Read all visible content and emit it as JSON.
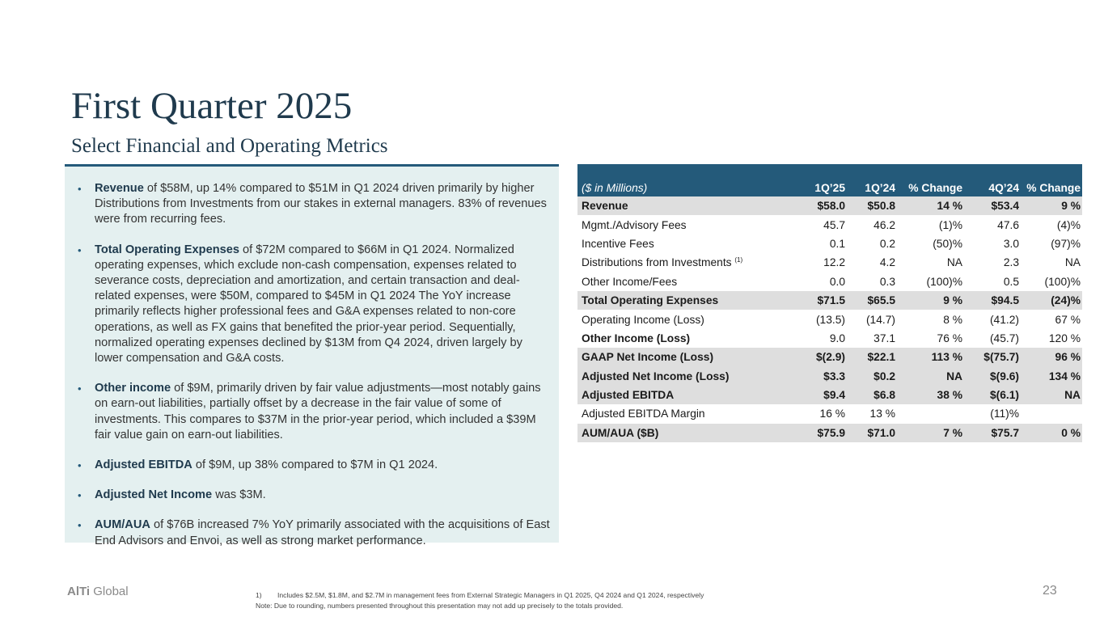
{
  "title": "First Quarter 2025",
  "subtitle": "Select Financial and Operating Metrics",
  "bullets": [
    {
      "bold": "Revenue",
      "text": " of $58M, up 14% compared to $51M in Q1 2024 driven primarily by higher Distributions from Investments from our stakes in external managers. 83% of revenues were from recurring fees."
    },
    {
      "bold": "Total Operating Expenses",
      "text": " of $72M compared to $66M in Q1 2024. Normalized operating expenses, which exclude non-cash compensation, expenses related to severance costs, depreciation and amortization, and certain transaction and deal-related expenses, were $50M, compared to $45M in Q1 2024 The YoY increase primarily reflects higher professional fees and G&A expenses related to non-core operations, as well as FX gains that benefited the prior-year period. Sequentially, normalized operating expenses declined by $13M from Q4 2024, driven largely by lower compensation and G&A costs."
    },
    {
      "bold": "Other income",
      "text": " of $9M, primarily driven by fair value adjustments—most notably gains on earn-out liabilities, partially offset by a decrease in the fair value of some of investments. This compares to $37M in the prior-year period, which included a $39M fair value gain on earn-out liabilities."
    },
    {
      "bold": "Adjusted EBITDA",
      "text": " of $9M, up 38% compared to $7M in Q1 2024."
    },
    {
      "bold": "Adjusted Net Income",
      "text": "  was $3M."
    },
    {
      "bold": "AUM/AUA",
      "text": " of $76B increased 7% YoY primarily associated with the acquisitions of East End Advisors and Envoi, as well as strong market performance."
    }
  ],
  "table": {
    "headers": [
      "($ in Millions)",
      "1Q’25",
      "1Q’24",
      "% Change",
      "4Q’24",
      "% Change"
    ],
    "rows": [
      {
        "label": "Revenue",
        "sup": "",
        "values": [
          "$58.0",
          "$50.8",
          "14 %",
          "$53.4",
          "9 %"
        ],
        "highlight": true
      },
      {
        "label": "Mgmt./Advisory Fees",
        "sup": "",
        "values": [
          "45.7",
          "46.2",
          "(1)%",
          "47.6",
          "(4)%"
        ],
        "highlight": false
      },
      {
        "label": "Incentive Fees",
        "sup": "",
        "values": [
          "0.1",
          "0.2",
          "(50)%",
          "3.0",
          "(97)%"
        ],
        "highlight": false
      },
      {
        "label": "Distributions from Investments ",
        "sup": "(1)",
        "values": [
          "12.2",
          "4.2",
          "NA",
          "2.3",
          "NA"
        ],
        "highlight": false
      },
      {
        "label": "Other Income/Fees",
        "sup": "",
        "values": [
          "0.0",
          "0.3",
          "(100)%",
          "0.5",
          "(100)%"
        ],
        "highlight": false
      },
      {
        "label": "Total Operating Expenses",
        "sup": "",
        "values": [
          "$71.5",
          "$65.5",
          "9 %",
          "$94.5",
          "(24)%"
        ],
        "highlight": true
      },
      {
        "label": "Operating Income (Loss)",
        "sup": "",
        "values": [
          "(13.5)",
          "(14.7)",
          "8 %",
          "(41.2)",
          "67 %"
        ],
        "highlight": false
      },
      {
        "label": "Other Income (Loss)",
        "sup": "",
        "values": [
          "9.0",
          "37.1",
          "76 %",
          "(45.7)",
          "120 %"
        ],
        "highlight": false,
        "bold_label": true
      },
      {
        "label": "GAAP Net Income (Loss)",
        "sup": "",
        "values": [
          "$(2.9)",
          "$22.1",
          "113 %",
          "$(75.7)",
          "96 %"
        ],
        "highlight": true
      },
      {
        "label": "Adjusted Net Income (Loss)",
        "sup": "",
        "values": [
          "$3.3",
          "$0.2",
          "NA",
          "$(9.6)",
          "134 %"
        ],
        "highlight": true
      },
      {
        "label": "Adjusted EBITDA",
        "sup": "",
        "values": [
          "$9.4",
          "$6.8",
          "38 %",
          "$(6.1)",
          "NA"
        ],
        "highlight": true
      },
      {
        "label": "Adjusted EBITDA Margin",
        "sup": "",
        "values": [
          "16 %",
          "13 %",
          "",
          "(11)%",
          ""
        ],
        "highlight": false
      },
      {
        "label": "AUM/AUA ($B)",
        "sup": "",
        "values": [
          "$75.9",
          "$71.0",
          "7 %",
          "$75.7",
          "0 %"
        ],
        "highlight": true
      }
    ]
  },
  "footer": {
    "logo_bold": "AlTi",
    "logo_rest": " Global",
    "footnote_num": "1)",
    "footnote_text": "Includes $2.5M, $1.8M, and $2.7M in management fees from External Strategic Managers in Q1 2025, Q4 2024 and Q1 2024, respectively",
    "note": "Note: Due to rounding, numbers presented throughout this presentation may not add up precisely to the totals provided.",
    "page_number": "23"
  }
}
